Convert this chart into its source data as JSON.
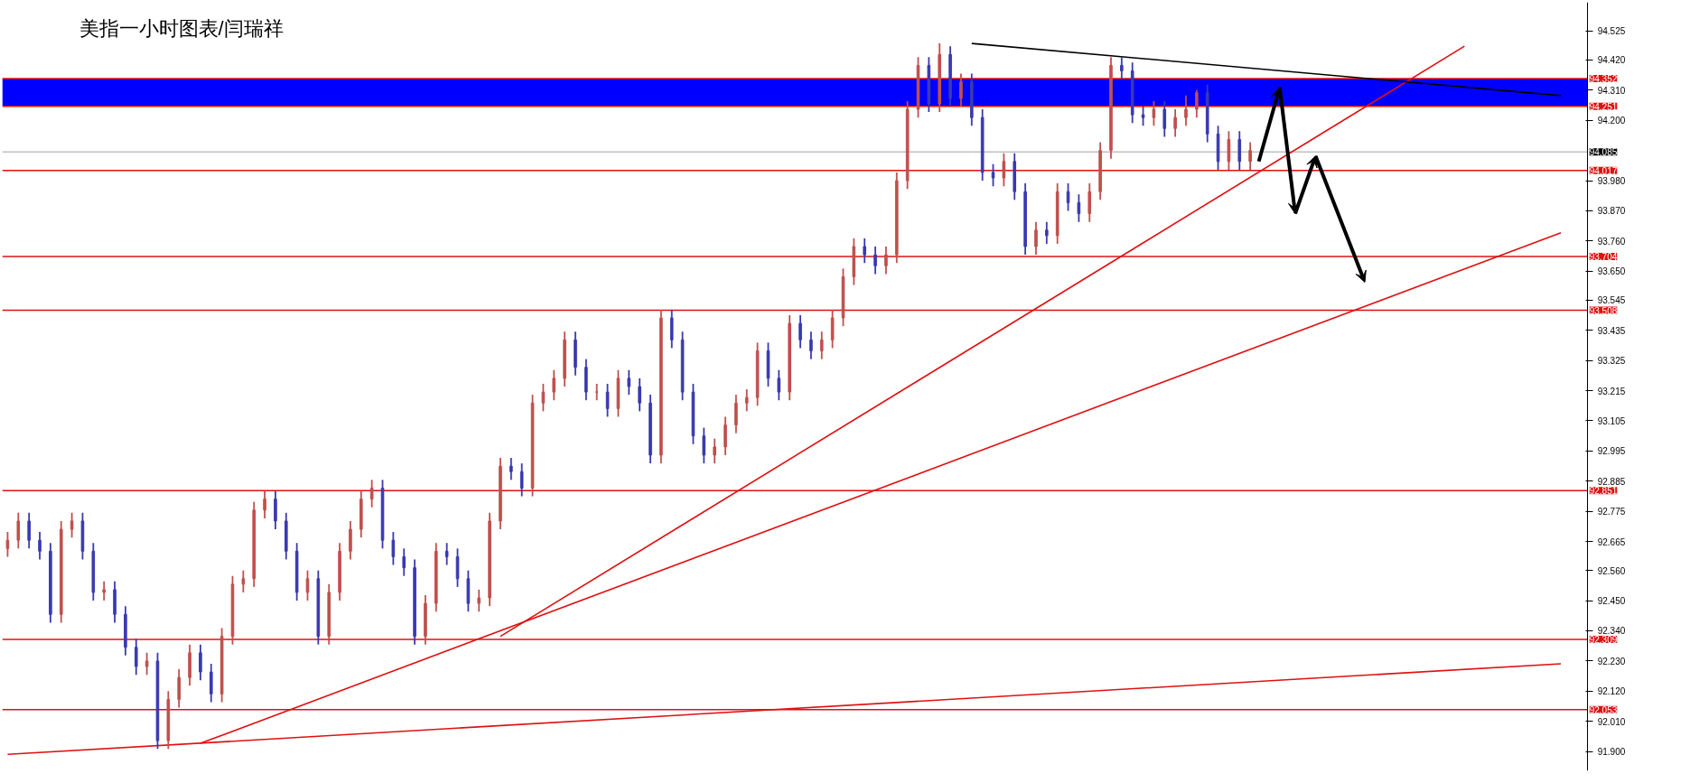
{
  "chart_data": {
    "type": "candlestick",
    "title": "美指一小时图表/闫瑞祥",
    "tick_labels": "y",
    "categories": [
      null,
      null,
      null,
      null,
      null,
      null,
      null,
      null,
      null,
      null,
      null,
      null,
      null,
      null,
      null,
      null,
      null,
      null,
      null,
      null,
      null,
      null,
      null,
      null,
      null,
      null,
      null,
      null,
      null,
      null,
      null,
      null,
      null,
      null,
      null,
      null,
      null,
      null,
      null,
      null,
      null,
      null,
      null,
      null,
      null,
      null,
      null,
      null,
      null,
      null,
      null,
      null,
      null,
      null,
      null,
      null,
      null,
      null,
      null,
      null,
      null,
      null,
      null,
      null,
      null,
      null,
      null,
      null,
      null,
      null,
      null,
      null,
      null,
      null,
      null,
      null,
      null,
      null,
      null,
      null,
      null,
      null,
      null,
      null,
      null,
      null,
      null,
      null,
      null,
      null,
      null,
      null,
      null,
      null,
      null,
      null,
      null,
      null,
      null,
      null,
      null,
      null,
      null,
      null,
      null,
      null,
      null,
      null,
      null,
      null,
      null,
      null,
      null,
      null,
      null,
      null,
      null,
      null,
      null,
      null,
      null,
      null,
      null,
      null,
      null,
      null,
      null,
      null,
      null,
      null,
      null,
      null,
      null,
      null,
      null,
      null,
      null,
      null,
      null,
      null,
      null,
      null,
      null,
      null,
      null,
      null,
      null,
      null
    ],
    "ohlc": [
      [
        92.64,
        92.7,
        92.61,
        92.67
      ],
      [
        92.67,
        92.77,
        92.64,
        92.74
      ],
      [
        92.74,
        92.77,
        92.64,
        92.67
      ],
      [
        92.67,
        92.7,
        92.6,
        92.63
      ],
      [
        92.63,
        92.66,
        92.37,
        92.4
      ],
      [
        92.4,
        92.74,
        92.37,
        92.71
      ],
      [
        92.71,
        92.77,
        92.68,
        92.74
      ],
      [
        92.74,
        92.77,
        92.6,
        92.63
      ],
      [
        92.63,
        92.66,
        92.45,
        92.48
      ],
      [
        92.48,
        92.52,
        92.45,
        92.49
      ],
      [
        92.49,
        92.52,
        92.37,
        92.4
      ],
      [
        92.4,
        92.43,
        92.25,
        92.28
      ],
      [
        92.28,
        92.31,
        92.18,
        92.21
      ],
      [
        92.21,
        92.26,
        92.18,
        92.23
      ],
      [
        92.23,
        92.26,
        91.91,
        91.94
      ],
      [
        91.94,
        92.12,
        91.91,
        92.09
      ],
      [
        92.09,
        92.2,
        92.06,
        92.17
      ],
      [
        92.17,
        92.29,
        92.14,
        92.26
      ],
      [
        92.26,
        92.29,
        92.16,
        92.19
      ],
      [
        92.19,
        92.22,
        92.08,
        92.11
      ],
      [
        92.11,
        92.35,
        92.08,
        92.32
      ],
      [
        92.32,
        92.54,
        92.29,
        92.51
      ],
      [
        92.51,
        92.56,
        92.48,
        92.53
      ],
      [
        92.53,
        92.81,
        92.5,
        92.78
      ],
      [
        92.78,
        92.85,
        92.75,
        92.82
      ],
      [
        92.82,
        92.85,
        92.71,
        92.74
      ],
      [
        92.74,
        92.77,
        92.6,
        92.63
      ],
      [
        92.63,
        92.66,
        92.45,
        92.48
      ],
      [
        92.48,
        92.56,
        92.45,
        92.53
      ],
      [
        92.53,
        92.56,
        92.29,
        92.32
      ],
      [
        92.32,
        92.51,
        92.29,
        92.48
      ],
      [
        92.48,
        92.66,
        92.45,
        92.63
      ],
      [
        92.63,
        92.74,
        92.6,
        92.71
      ],
      [
        92.71,
        92.85,
        92.68,
        92.82
      ],
      [
        92.82,
        92.89,
        92.79,
        92.86
      ],
      [
        92.86,
        92.89,
        92.64,
        92.67
      ],
      [
        92.67,
        92.7,
        92.58,
        92.61
      ],
      [
        92.61,
        92.64,
        92.54,
        92.57
      ],
      [
        92.57,
        92.6,
        92.29,
        92.32
      ],
      [
        92.32,
        92.47,
        92.29,
        92.44
      ],
      [
        92.44,
        92.66,
        92.41,
        92.63
      ],
      [
        92.63,
        92.66,
        92.58,
        92.61
      ],
      [
        92.61,
        92.64,
        92.5,
        92.53
      ],
      [
        92.53,
        92.56,
        92.41,
        92.44
      ],
      [
        92.44,
        92.49,
        92.41,
        92.46
      ],
      [
        92.46,
        92.77,
        92.43,
        92.74
      ],
      [
        92.74,
        92.97,
        92.71,
        92.94
      ],
      [
        92.94,
        92.97,
        92.89,
        92.92
      ],
      [
        92.92,
        92.95,
        92.83,
        92.86
      ],
      [
        92.86,
        93.2,
        92.83,
        93.17
      ],
      [
        93.17,
        93.24,
        93.14,
        93.21
      ],
      [
        93.21,
        93.29,
        93.18,
        93.26
      ],
      [
        93.26,
        93.43,
        93.23,
        93.4
      ],
      [
        93.4,
        93.43,
        93.27,
        93.3
      ],
      [
        93.3,
        93.33,
        93.18,
        93.21
      ],
      [
        93.21,
        93.24,
        93.18,
        93.21
      ],
      [
        93.21,
        93.24,
        93.12,
        93.15
      ],
      [
        93.15,
        93.29,
        93.12,
        93.26
      ],
      [
        93.26,
        93.29,
        93.2,
        93.23
      ],
      [
        93.23,
        93.26,
        93.14,
        93.17
      ],
      [
        93.17,
        93.2,
        92.95,
        92.98
      ],
      [
        92.98,
        93.51,
        92.95,
        93.48
      ],
      [
        93.48,
        93.51,
        93.37,
        93.4
      ],
      [
        93.4,
        93.43,
        93.18,
        93.21
      ],
      [
        93.21,
        93.24,
        93.02,
        93.05
      ],
      [
        93.05,
        93.08,
        92.95,
        92.98
      ],
      [
        92.98,
        93.04,
        92.95,
        93.01
      ],
      [
        93.01,
        93.12,
        92.98,
        93.09
      ],
      [
        93.09,
        93.2,
        93.06,
        93.17
      ],
      [
        93.17,
        93.22,
        93.14,
        93.19
      ],
      [
        93.19,
        93.39,
        93.16,
        93.36
      ],
      [
        93.36,
        93.39,
        93.23,
        93.26
      ],
      [
        93.26,
        93.29,
        93.18,
        93.21
      ],
      [
        93.21,
        93.49,
        93.18,
        93.46
      ],
      [
        93.46,
        93.49,
        93.37,
        93.4
      ],
      [
        93.4,
        93.43,
        93.33,
        93.36
      ],
      [
        93.36,
        93.43,
        93.33,
        93.4
      ],
      [
        93.4,
        93.51,
        93.37,
        93.48
      ],
      [
        93.48,
        93.66,
        93.45,
        93.63
      ],
      [
        93.63,
        93.77,
        93.6,
        93.74
      ],
      [
        93.74,
        93.77,
        93.68,
        93.71
      ],
      [
        93.71,
        93.74,
        93.64,
        93.67
      ],
      [
        93.67,
        93.74,
        93.64,
        93.71
      ],
      [
        93.71,
        94.01,
        93.68,
        93.98
      ],
      [
        93.98,
        94.27,
        93.95,
        94.24
      ],
      [
        94.24,
        94.43,
        94.21,
        94.4
      ],
      [
        94.4,
        94.43,
        94.23,
        94.26
      ],
      [
        94.26,
        94.48,
        94.23,
        94.44
      ],
      [
        94.44,
        94.47,
        94.25,
        94.28
      ],
      [
        94.28,
        94.37,
        94.25,
        94.34
      ],
      [
        94.34,
        94.37,
        94.18,
        94.21
      ],
      [
        94.21,
        94.24,
        93.98,
        94.01
      ],
      [
        94.01,
        94.04,
        93.96,
        93.99
      ],
      [
        93.99,
        94.08,
        93.96,
        94.05
      ],
      [
        94.05,
        94.08,
        93.91,
        93.94
      ],
      [
        93.94,
        93.97,
        93.71,
        93.74
      ],
      [
        93.74,
        93.83,
        93.71,
        93.8
      ],
      [
        93.8,
        93.83,
        93.75,
        93.78
      ],
      [
        93.78,
        93.97,
        93.75,
        93.94
      ],
      [
        93.94,
        93.97,
        93.87,
        93.9
      ],
      [
        93.9,
        93.93,
        93.83,
        93.86
      ],
      [
        93.86,
        93.97,
        93.83,
        93.94
      ],
      [
        93.94,
        94.12,
        93.91,
        94.09
      ],
      [
        94.09,
        94.43,
        94.06,
        94.4
      ],
      [
        94.4,
        94.43,
        94.35,
        94.38
      ],
      [
        94.38,
        94.41,
        94.19,
        94.22
      ],
      [
        94.22,
        94.25,
        94.18,
        94.21
      ],
      [
        94.21,
        94.27,
        94.18,
        94.24
      ],
      [
        94.24,
        94.27,
        94.14,
        94.17
      ],
      [
        94.17,
        94.24,
        94.14,
        94.21
      ],
      [
        94.21,
        94.29,
        94.18,
        94.24
      ],
      [
        94.24,
        94.31,
        94.21,
        94.3
      ],
      [
        94.3,
        94.33,
        94.12,
        94.15
      ],
      [
        94.15,
        94.18,
        94.02,
        94.05
      ],
      [
        94.05,
        94.16,
        94.02,
        94.13
      ],
      [
        94.13,
        94.16,
        94.02,
        94.05
      ],
      [
        94.05,
        94.12,
        94.02,
        94.09
      ],
      null,
      null,
      null,
      null,
      null,
      null,
      null,
      null,
      null,
      null,
      null,
      null,
      null,
      null,
      null,
      null,
      null,
      null,
      null,
      null,
      null,
      null,
      null,
      null,
      null,
      null,
      null,
      null,
      null,
      null,
      null
    ],
    "ylim": [
      91.83,
      94.63
    ],
    "yticks": [
      {
        "value": 94.525,
        "label": "94.525"
      },
      {
        "value": 94.42,
        "label": "94.420"
      },
      {
        "value": 94.31,
        "label": "94.310"
      },
      {
        "value": 94.2,
        "label": "94.200"
      },
      {
        "value": 93.98,
        "label": "93.980"
      },
      {
        "value": 93.87,
        "label": "93.870"
      },
      {
        "value": 93.76,
        "label": "93.760"
      },
      {
        "value": 93.65,
        "label": "93.650"
      },
      {
        "value": 93.545,
        "label": "93.545"
      },
      {
        "value": 93.435,
        "label": "93.435"
      },
      {
        "value": 93.325,
        "label": "93.325"
      },
      {
        "value": 93.215,
        "label": "93.215"
      },
      {
        "value": 93.105,
        "label": "93.105"
      },
      {
        "value": 92.995,
        "label": "92.995"
      },
      {
        "value": 92.885,
        "label": "92.885"
      },
      {
        "value": 92.775,
        "label": "92.775"
      },
      {
        "value": 92.665,
        "label": "92.665"
      },
      {
        "value": 92.56,
        "label": "92.560"
      },
      {
        "value": 92.45,
        "label": "92.450"
      },
      {
        "value": 92.34,
        "label": "92.340"
      },
      {
        "value": 92.23,
        "label": "92.230"
      },
      {
        "value": 92.12,
        "label": "92.120"
      },
      {
        "value": 92.01,
        "label": "92.010"
      },
      {
        "value": 91.9,
        "label": "91.900"
      }
    ],
    "bands": [
      {
        "axis": "y",
        "from": 94.251,
        "to": 94.352,
        "color": "#0000ff"
      }
    ],
    "ref_lines": [
      {
        "axis": "y",
        "value": 94.352,
        "label": "94.352",
        "color": "#e01010"
      },
      {
        "axis": "y",
        "value": 94.251,
        "label": "94.251",
        "color": "#e01010"
      },
      {
        "axis": "y",
        "value": 94.085,
        "label": "94.085",
        "color": "#c0c0c0"
      },
      {
        "axis": "y",
        "value": 94.017,
        "label": "94.017",
        "color": "#e01010"
      },
      {
        "axis": "y",
        "value": 93.704,
        "label": "93.704",
        "color": "#e01010"
      },
      {
        "axis": "y",
        "value": 93.508,
        "label": "93.508",
        "color": "#e01010"
      },
      {
        "axis": "y",
        "value": 92.851,
        "label": "92.851",
        "color": "#e01010"
      },
      {
        "axis": "y",
        "value": 92.309,
        "label": "92.309",
        "color": "#e01010"
      },
      {
        "axis": "y",
        "value": 92.053,
        "label": "92.053",
        "color": "#e01010"
      }
    ],
    "series": [
      {
        "type": "line",
        "color": "#e01010",
        "values": [
          null,
          null,
          null,
          null,
          null,
          null,
          null,
          null,
          null,
          null,
          null,
          null,
          null,
          null,
          null,
          null,
          null,
          null,
          null,
          null,
          null,
          null,
          null,
          null,
          null,
          null,
          null,
          null,
          null,
          null,
          null,
          null,
          null,
          null,
          null,
          null,
          null,
          null,
          null,
          null,
          null,
          null,
          null,
          null,
          null,
          null,
          92.32,
          null,
          null,
          null,
          null,
          null,
          null,
          null,
          null,
          null,
          null,
          null,
          null,
          null,
          null,
          null,
          null,
          null,
          null,
          null,
          null,
          null,
          null,
          null,
          null,
          null,
          null,
          null,
          null,
          null,
          null,
          null,
          null,
          null,
          null,
          null,
          null,
          null,
          null,
          null,
          null,
          null,
          null,
          null,
          null,
          null,
          null,
          null,
          null,
          null,
          null,
          null,
          null,
          null,
          null,
          null,
          null,
          null,
          null,
          null,
          null,
          null,
          null,
          null,
          null,
          null,
          null,
          null,
          null,
          null,
          null,
          null,
          null,
          null,
          null,
          null,
          null,
          null,
          null,
          null,
          null,
          null,
          null,
          null,
          null,
          null,
          null,
          null,
          null,
          null,
          94.47,
          null,
          null,
          null,
          null,
          null,
          null,
          null,
          null,
          null,
          null,
          null
        ]
      },
      {
        "type": "line",
        "color": "#e01010",
        "values": [
          null,
          null,
          null,
          null,
          null,
          null,
          null,
          null,
          null,
          null,
          null,
          null,
          null,
          null,
          null,
          null,
          null,
          null,
          91.93,
          null,
          null,
          null,
          null,
          null,
          null,
          null,
          null,
          null,
          null,
          null,
          null,
          null,
          null,
          null,
          null,
          null,
          null,
          null,
          null,
          null,
          null,
          null,
          null,
          null,
          null,
          null,
          null,
          null,
          null,
          null,
          null,
          null,
          null,
          null,
          null,
          null,
          null,
          null,
          null,
          null,
          null,
          null,
          null,
          null,
          null,
          null,
          null,
          null,
          null,
          null,
          null,
          null,
          null,
          null,
          null,
          null,
          null,
          null,
          null,
          null,
          null,
          null,
          null,
          null,
          null,
          null,
          null,
          null,
          null,
          null,
          null,
          null,
          null,
          null,
          null,
          null,
          null,
          null,
          null,
          null,
          null,
          null,
          null,
          null,
          null,
          null,
          null,
          null,
          null,
          null,
          null,
          null,
          null,
          null,
          null,
          null,
          null,
          null,
          null,
          null,
          null,
          null,
          null,
          null,
          null,
          null,
          null,
          null,
          null,
          null,
          null,
          null,
          null,
          null,
          null,
          null,
          null,
          null,
          null,
          null,
          null,
          null,
          null,
          null,
          null,
          93.79,
          null,
          null
        ]
      },
      {
        "type": "line",
        "color": "#e01010",
        "values": [
          91.89,
          null,
          null,
          null,
          null,
          null,
          null,
          null,
          null,
          null,
          null,
          null,
          null,
          null,
          null,
          null,
          null,
          null,
          null,
          null,
          null,
          null,
          null,
          null,
          null,
          null,
          null,
          null,
          null,
          null,
          null,
          null,
          null,
          null,
          null,
          null,
          null,
          null,
          null,
          null,
          null,
          null,
          null,
          null,
          null,
          null,
          null,
          null,
          null,
          null,
          null,
          null,
          null,
          null,
          null,
          null,
          null,
          null,
          null,
          null,
          null,
          null,
          null,
          null,
          null,
          null,
          null,
          null,
          null,
          null,
          null,
          null,
          null,
          null,
          null,
          null,
          null,
          null,
          null,
          null,
          null,
          null,
          null,
          null,
          null,
          null,
          null,
          null,
          null,
          null,
          null,
          null,
          null,
          null,
          null,
          null,
          null,
          null,
          null,
          null,
          null,
          null,
          null,
          null,
          null,
          null,
          null,
          null,
          null,
          null,
          null,
          null,
          null,
          null,
          null,
          null,
          null,
          null,
          null,
          null,
          null,
          null,
          null,
          null,
          null,
          null,
          null,
          null,
          null,
          null,
          null,
          null,
          null,
          null,
          null,
          null,
          null,
          null,
          null,
          null,
          null,
          null,
          null,
          null,
          null,
          92.22,
          null,
          null
        ]
      },
      {
        "type": "line",
        "color": "#000000",
        "values": [
          null,
          null,
          null,
          null,
          null,
          null,
          null,
          null,
          null,
          null,
          null,
          null,
          null,
          null,
          null,
          null,
          null,
          null,
          null,
          null,
          null,
          null,
          null,
          null,
          null,
          null,
          null,
          null,
          null,
          null,
          null,
          null,
          null,
          null,
          null,
          null,
          null,
          null,
          null,
          null,
          null,
          null,
          null,
          null,
          null,
          null,
          null,
          null,
          null,
          null,
          null,
          null,
          null,
          null,
          null,
          null,
          null,
          null,
          null,
          null,
          null,
          null,
          null,
          null,
          null,
          null,
          null,
          null,
          null,
          null,
          null,
          null,
          null,
          null,
          null,
          null,
          null,
          null,
          null,
          null,
          null,
          null,
          null,
          null,
          null,
          null,
          null,
          null,
          null,
          null,
          94.48,
          null,
          null,
          null,
          null,
          null,
          null,
          null,
          null,
          null,
          null,
          null,
          null,
          null,
          null,
          null,
          null,
          null,
          null,
          null,
          null,
          null,
          null,
          null,
          null,
          null,
          null,
          null,
          null,
          null,
          null,
          null,
          null,
          null,
          null,
          null,
          null,
          null,
          null,
          null,
          null,
          null,
          null,
          null,
          null,
          null,
          null,
          null,
          null,
          null,
          null,
          null,
          null,
          null,
          null,
          94.29,
          null,
          null
        ]
      }
    ]
  }
}
